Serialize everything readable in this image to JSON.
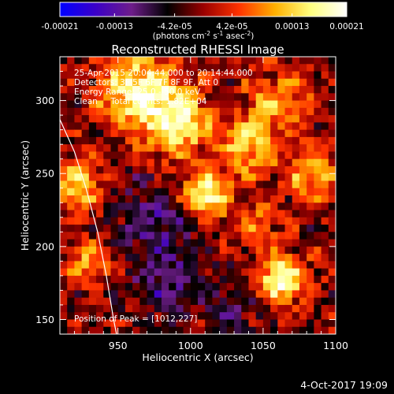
{
  "chart_data": {
    "type": "heatmap",
    "title": "Reconstructed RHESSI Image",
    "xlabel": "Heliocentric X (arcsec)",
    "ylabel": "Heliocentric Y (arcsec)",
    "xlim": [
      910,
      1100
    ],
    "ylim": [
      140,
      330
    ],
    "xticks": [
      "950",
      "1000",
      "1050",
      "1100"
    ],
    "xtick_values": [
      950,
      1000,
      1050,
      1100
    ],
    "yticks": [
      "150",
      "200",
      "250",
      "300"
    ],
    "ytick_values": [
      150,
      200,
      250,
      300
    ],
    "colorbar": {
      "range": [
        -0.00021,
        0.00021
      ],
      "tick_labels": [
        "-0.00021",
        "-0.00013",
        "-4.2e-05",
        "4.2e-05",
        "0.00013",
        "0.00021"
      ],
      "tick_values": [
        -0.00021,
        -0.00013,
        -4.2e-05,
        4.2e-05,
        0.00013,
        0.00021
      ],
      "unit_text": "(photons cm",
      "unit_sup1": "-2",
      "unit_mid1": " s",
      "unit_sup2": "-1",
      "unit_mid2": " asec",
      "unit_sup3": "-2",
      "unit_end": ")",
      "colors": [
        "#0000ff",
        "#3b00c8",
        "#6e1d8a",
        "#000000",
        "#9a0000",
        "#ff3300",
        "#ffb000",
        "#ffff80",
        "#ffffff"
      ]
    },
    "annotations": {
      "time_range": "25-Apr-2015 20:04:44.000 to 20:14:44.000",
      "detectors": "Detectors: 3F 5F 6F 7F 8F 9F, Att 0",
      "energy_range": "Energy Range: 25.0 - 50.0 keV",
      "clean_info": "Clean     Total counts: 1.82E+04",
      "peak": "Position of Peak = [1012,227]"
    },
    "peak_position": [
      1012,
      227
    ],
    "grid_size": [
      38,
      38
    ],
    "limb": [
      [
        910,
        287
      ],
      [
        920,
        265
      ],
      [
        928,
        240
      ],
      [
        936,
        210
      ],
      [
        942,
        180
      ],
      [
        947,
        150
      ],
      [
        949,
        140
      ]
    ],
    "sources": [
      {
        "x": 963,
        "y": 308,
        "amp": 1.0,
        "sigma": 18
      },
      {
        "x": 990,
        "y": 285,
        "amp": 1.0,
        "sigma": 16
      },
      {
        "x": 1010,
        "y": 235,
        "amp": 1.25,
        "sigma": 11
      },
      {
        "x": 1040,
        "y": 268,
        "amp": 0.75,
        "sigma": 14
      },
      {
        "x": 1058,
        "y": 300,
        "amp": 0.6,
        "sigma": 14
      },
      {
        "x": 1085,
        "y": 250,
        "amp": 0.7,
        "sigma": 13
      },
      {
        "x": 1062,
        "y": 178,
        "amp": 1.15,
        "sigma": 12
      },
      {
        "x": 922,
        "y": 240,
        "amp": 0.8,
        "sigma": 12
      },
      {
        "x": 930,
        "y": 190,
        "amp": 0.6,
        "sigma": 10
      },
      {
        "x": 1045,
        "y": 215,
        "amp": 0.5,
        "sigma": 10
      },
      {
        "x": 975,
        "y": 220,
        "amp": -0.55,
        "sigma": 18
      },
      {
        "x": 985,
        "y": 175,
        "amp": -0.5,
        "sigma": 16
      },
      {
        "x": 1030,
        "y": 160,
        "amp": -0.4,
        "sigma": 14
      }
    ]
  },
  "footer": {
    "date": "4-Oct-2017 19:09"
  }
}
